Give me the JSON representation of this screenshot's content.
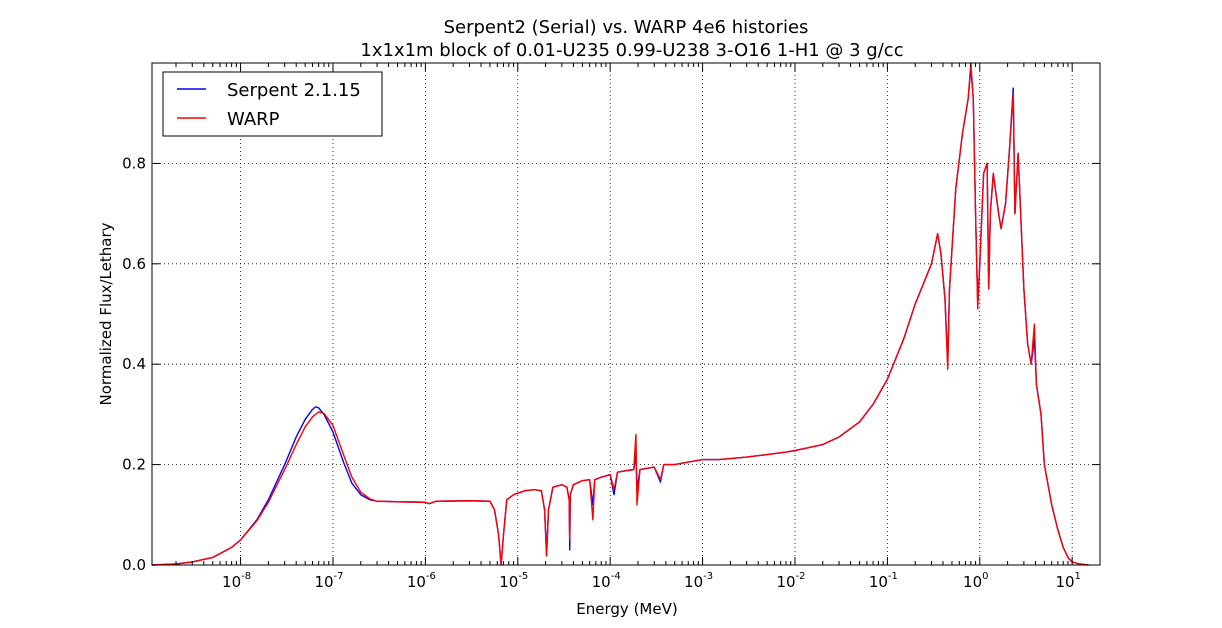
{
  "chart_data": {
    "type": "line",
    "title": "Serpent2 (Serial) vs. WARP 4e6 histories",
    "subtitle": "1x1x1m block of 0.01-U235 0.99-U238 3-O16 1-H1 @ 3 g/cc",
    "xlabel": "Energy (MeV)",
    "ylabel": "Normalized Flux/Lethary",
    "xscale": "log",
    "xlim": [
      1.1e-09,
      20
    ],
    "ylim": [
      0.0,
      1.0
    ],
    "grid": true,
    "legend_position": "top-left",
    "x_ticks": [
      {
        "value": 1e-08,
        "base": "10",
        "exp": "-8"
      },
      {
        "value": 1e-07,
        "base": "10",
        "exp": "-7"
      },
      {
        "value": 1e-06,
        "base": "10",
        "exp": "-6"
      },
      {
        "value": 1e-05,
        "base": "10",
        "exp": "-5"
      },
      {
        "value": 0.0001,
        "base": "10",
        "exp": "-4"
      },
      {
        "value": 0.001,
        "base": "10",
        "exp": "-3"
      },
      {
        "value": 0.01,
        "base": "10",
        "exp": "-2"
      },
      {
        "value": 0.1,
        "base": "10",
        "exp": "-1"
      },
      {
        "value": 1,
        "base": "10",
        "exp": "0"
      },
      {
        "value": 10,
        "base": "10",
        "exp": "1"
      }
    ],
    "y_ticks": [
      {
        "value": 0.0,
        "label": "0.0"
      },
      {
        "value": 0.2,
        "label": "0.2"
      },
      {
        "value": 0.4,
        "label": "0.4"
      },
      {
        "value": 0.6,
        "label": "0.6"
      },
      {
        "value": 0.8,
        "label": "0.8"
      }
    ],
    "series": [
      {
        "name": "Serpent 2.1.15",
        "color": "#0000ff",
        "points": [
          [
            1.1e-09,
            0.0
          ],
          [
            2e-09,
            0.002
          ],
          [
            3e-09,
            0.006
          ],
          [
            5e-09,
            0.015
          ],
          [
            8e-09,
            0.035
          ],
          [
            1e-08,
            0.05
          ],
          [
            1.5e-08,
            0.09
          ],
          [
            2e-08,
            0.13
          ],
          [
            3e-08,
            0.2
          ],
          [
            4e-08,
            0.255
          ],
          [
            5e-08,
            0.29
          ],
          [
            6e-08,
            0.31
          ],
          [
            6.5e-08,
            0.315
          ],
          [
            7e-08,
            0.313
          ],
          [
            8e-08,
            0.3
          ],
          [
            1e-07,
            0.265
          ],
          [
            1.3e-07,
            0.205
          ],
          [
            1.6e-07,
            0.163
          ],
          [
            2e-07,
            0.14
          ],
          [
            2.5e-07,
            0.13
          ],
          [
            3e-07,
            0.127
          ],
          [
            5e-07,
            0.126
          ],
          [
            1e-06,
            0.125
          ],
          [
            1.1e-06,
            0.122
          ],
          [
            1.3e-06,
            0.127
          ],
          [
            3e-06,
            0.128
          ],
          [
            5e-06,
            0.127
          ],
          [
            5.6e-06,
            0.11
          ],
          [
            6.2e-06,
            0.06
          ],
          [
            6.6e-06,
            0.0
          ],
          [
            7e-06,
            0.06
          ],
          [
            7.6e-06,
            0.13
          ],
          [
            9e-06,
            0.14
          ],
          [
            1.2e-05,
            0.148
          ],
          [
            1.5e-05,
            0.15
          ],
          [
            1.8e-05,
            0.148
          ],
          [
            1.95e-05,
            0.11
          ],
          [
            2.05e-05,
            0.02
          ],
          [
            2.15e-05,
            0.11
          ],
          [
            2.4e-05,
            0.155
          ],
          [
            3e-05,
            0.16
          ],
          [
            3.4e-05,
            0.155
          ],
          [
            3.6e-05,
            0.13
          ],
          [
            3.65e-05,
            0.03
          ],
          [
            3.7e-05,
            0.14
          ],
          [
            4e-05,
            0.16
          ],
          [
            5e-05,
            0.168
          ],
          [
            6e-05,
            0.17
          ],
          [
            6.5e-05,
            0.12
          ],
          [
            6.8e-05,
            0.17
          ],
          [
            8e-05,
            0.175
          ],
          [
            0.0001,
            0.18
          ],
          [
            0.00011,
            0.14
          ],
          [
            0.00012,
            0.185
          ],
          [
            0.00015,
            0.188
          ],
          [
            0.00018,
            0.19
          ],
          [
            0.00019,
            0.22
          ],
          [
            0.000195,
            0.15
          ],
          [
            0.00021,
            0.19
          ],
          [
            0.0003,
            0.195
          ],
          [
            0.00035,
            0.165
          ],
          [
            0.00038,
            0.2
          ],
          [
            0.0005,
            0.2
          ],
          [
            0.0007,
            0.205
          ],
          [
            0.001,
            0.21
          ],
          [
            0.0015,
            0.21
          ],
          [
            0.002,
            0.212
          ],
          [
            0.003,
            0.215
          ],
          [
            0.005,
            0.22
          ],
          [
            0.008,
            0.225
          ],
          [
            0.01,
            0.228
          ],
          [
            0.02,
            0.24
          ],
          [
            0.03,
            0.255
          ],
          [
            0.05,
            0.285
          ],
          [
            0.07,
            0.32
          ],
          [
            0.1,
            0.37
          ],
          [
            0.15,
            0.45
          ],
          [
            0.2,
            0.52
          ],
          [
            0.3,
            0.6
          ],
          [
            0.35,
            0.66
          ],
          [
            0.38,
            0.62
          ],
          [
            0.42,
            0.53
          ],
          [
            0.45,
            0.4
          ],
          [
            0.47,
            0.55
          ],
          [
            0.55,
            0.75
          ],
          [
            0.65,
            0.86
          ],
          [
            0.75,
            0.93
          ],
          [
            0.8,
            0.99
          ],
          [
            0.85,
            0.93
          ],
          [
            0.9,
            0.7
          ],
          [
            0.95,
            0.52
          ],
          [
            1.0,
            0.6
          ],
          [
            1.1,
            0.78
          ],
          [
            1.2,
            0.8
          ],
          [
            1.25,
            0.55
          ],
          [
            1.3,
            0.7
          ],
          [
            1.4,
            0.78
          ],
          [
            1.6,
            0.7
          ],
          [
            1.7,
            0.67
          ],
          [
            1.9,
            0.72
          ],
          [
            2.1,
            0.83
          ],
          [
            2.3,
            0.95
          ],
          [
            2.4,
            0.7
          ],
          [
            2.6,
            0.82
          ],
          [
            2.8,
            0.68
          ],
          [
            3.0,
            0.55
          ],
          [
            3.3,
            0.44
          ],
          [
            3.6,
            0.4
          ],
          [
            3.9,
            0.45
          ],
          [
            4.1,
            0.36
          ],
          [
            4.6,
            0.3
          ],
          [
            5.0,
            0.2
          ],
          [
            6.0,
            0.12
          ],
          [
            7.0,
            0.07
          ],
          [
            8.0,
            0.035
          ],
          [
            9.0,
            0.015
          ],
          [
            10.0,
            0.006
          ],
          [
            12.0,
            0.002
          ],
          [
            15.0,
            0.0
          ]
        ]
      },
      {
        "name": "WARP",
        "color": "#ff0000",
        "points": [
          [
            1.1e-09,
            0.0
          ],
          [
            2e-09,
            0.002
          ],
          [
            3e-09,
            0.006
          ],
          [
            5e-09,
            0.015
          ],
          [
            8e-09,
            0.035
          ],
          [
            1e-08,
            0.05
          ],
          [
            1.5e-08,
            0.088
          ],
          [
            2e-08,
            0.125
          ],
          [
            3e-08,
            0.19
          ],
          [
            4e-08,
            0.24
          ],
          [
            5e-08,
            0.275
          ],
          [
            6e-08,
            0.295
          ],
          [
            7e-08,
            0.305
          ],
          [
            8e-08,
            0.302
          ],
          [
            1e-07,
            0.278
          ],
          [
            1.3e-07,
            0.22
          ],
          [
            1.6e-07,
            0.175
          ],
          [
            2e-07,
            0.145
          ],
          [
            2.5e-07,
            0.132
          ],
          [
            3e-07,
            0.127
          ],
          [
            5e-07,
            0.126
          ],
          [
            1e-06,
            0.125
          ],
          [
            1.1e-06,
            0.122
          ],
          [
            1.3e-06,
            0.127
          ],
          [
            3e-06,
            0.128
          ],
          [
            5e-06,
            0.127
          ],
          [
            5.6e-06,
            0.11
          ],
          [
            6.2e-06,
            0.06
          ],
          [
            6.6e-06,
            0.0
          ],
          [
            7e-06,
            0.06
          ],
          [
            7.6e-06,
            0.13
          ],
          [
            9e-06,
            0.14
          ],
          [
            1.2e-05,
            0.148
          ],
          [
            1.5e-05,
            0.15
          ],
          [
            1.8e-05,
            0.148
          ],
          [
            1.95e-05,
            0.11
          ],
          [
            2.05e-05,
            0.018
          ],
          [
            2.15e-05,
            0.11
          ],
          [
            2.4e-05,
            0.155
          ],
          [
            3e-05,
            0.16
          ],
          [
            3.4e-05,
            0.155
          ],
          [
            3.6e-05,
            0.13
          ],
          [
            3.65e-05,
            0.05
          ],
          [
            3.7e-05,
            0.14
          ],
          [
            4e-05,
            0.16
          ],
          [
            5e-05,
            0.168
          ],
          [
            6e-05,
            0.17
          ],
          [
            6.5e-05,
            0.09
          ],
          [
            6.8e-05,
            0.17
          ],
          [
            8e-05,
            0.175
          ],
          [
            0.0001,
            0.18
          ],
          [
            0.00011,
            0.15
          ],
          [
            0.00012,
            0.185
          ],
          [
            0.00015,
            0.188
          ],
          [
            0.00018,
            0.19
          ],
          [
            0.00019,
            0.26
          ],
          [
            0.000195,
            0.12
          ],
          [
            0.00021,
            0.19
          ],
          [
            0.0003,
            0.195
          ],
          [
            0.00035,
            0.17
          ],
          [
            0.00038,
            0.2
          ],
          [
            0.0005,
            0.2
          ],
          [
            0.0007,
            0.205
          ],
          [
            0.001,
            0.21
          ],
          [
            0.0015,
            0.21
          ],
          [
            0.002,
            0.212
          ],
          [
            0.003,
            0.215
          ],
          [
            0.005,
            0.22
          ],
          [
            0.008,
            0.225
          ],
          [
            0.01,
            0.228
          ],
          [
            0.02,
            0.24
          ],
          [
            0.03,
            0.255
          ],
          [
            0.05,
            0.285
          ],
          [
            0.07,
            0.32
          ],
          [
            0.1,
            0.37
          ],
          [
            0.15,
            0.45
          ],
          [
            0.2,
            0.52
          ],
          [
            0.3,
            0.6
          ],
          [
            0.35,
            0.66
          ],
          [
            0.38,
            0.62
          ],
          [
            0.42,
            0.53
          ],
          [
            0.45,
            0.39
          ],
          [
            0.47,
            0.55
          ],
          [
            0.55,
            0.75
          ],
          [
            0.65,
            0.86
          ],
          [
            0.75,
            0.93
          ],
          [
            0.8,
            1.0
          ],
          [
            0.85,
            0.93
          ],
          [
            0.9,
            0.7
          ],
          [
            0.95,
            0.51
          ],
          [
            1.0,
            0.6
          ],
          [
            1.1,
            0.78
          ],
          [
            1.2,
            0.8
          ],
          [
            1.25,
            0.55
          ],
          [
            1.3,
            0.7
          ],
          [
            1.4,
            0.78
          ],
          [
            1.6,
            0.7
          ],
          [
            1.7,
            0.67
          ],
          [
            1.9,
            0.72
          ],
          [
            2.1,
            0.83
          ],
          [
            2.3,
            0.94
          ],
          [
            2.4,
            0.7
          ],
          [
            2.6,
            0.82
          ],
          [
            2.8,
            0.68
          ],
          [
            3.0,
            0.55
          ],
          [
            3.3,
            0.44
          ],
          [
            3.6,
            0.4
          ],
          [
            3.9,
            0.48
          ],
          [
            4.1,
            0.36
          ],
          [
            4.6,
            0.3
          ],
          [
            5.0,
            0.2
          ],
          [
            6.0,
            0.12
          ],
          [
            7.0,
            0.07
          ],
          [
            8.0,
            0.035
          ],
          [
            9.0,
            0.015
          ],
          [
            10.0,
            0.006
          ],
          [
            12.0,
            0.002
          ],
          [
            15.0,
            0.0
          ]
        ]
      }
    ]
  }
}
